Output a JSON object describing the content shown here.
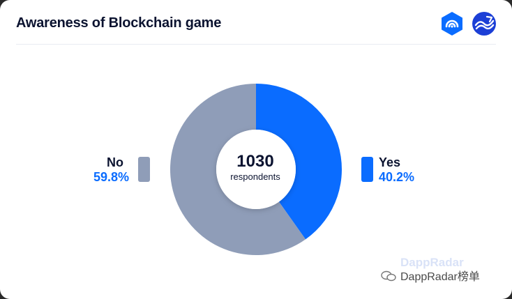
{
  "card": {
    "title": "Awareness of Blockchain game"
  },
  "center": {
    "value": "1030",
    "label": "respondents"
  },
  "colors": {
    "yes": "#0a6cff",
    "no": "#8f9db8",
    "title": "#0b1330"
  },
  "watermark": {
    "text": "DappRadar榜单",
    "ghost_text": "DappRadar"
  },
  "chart_data": {
    "type": "pie",
    "title": "Awareness of Blockchain game",
    "center_total": 1030,
    "center_label": "respondents",
    "slices": [
      {
        "label": "Yes",
        "value": 40.2,
        "display": "40.2%",
        "color": "#0a6cff"
      },
      {
        "label": "No",
        "value": 59.8,
        "display": "59.8%",
        "color": "#8f9db8"
      }
    ]
  }
}
